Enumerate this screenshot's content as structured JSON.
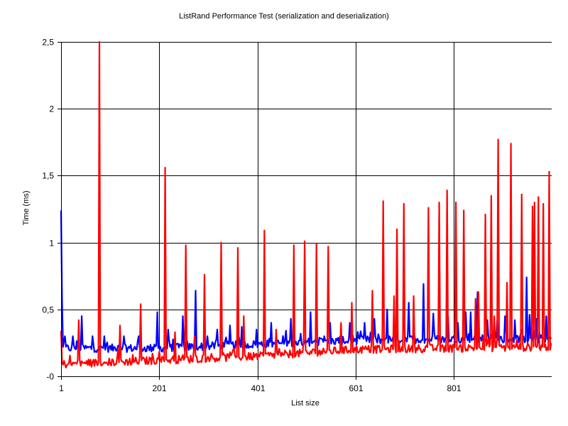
{
  "chart_data": {
    "type": "line",
    "title": "ListRand Performance Test (serialization and deserialization)",
    "xlabel": "List size",
    "ylabel": "Time (ms)",
    "xlim": [
      1,
      1000
    ],
    "ylim": [
      0,
      2.5
    ],
    "x_ticks": [
      {
        "value": 1,
        "label": "1"
      },
      {
        "value": 201,
        "label": "201"
      },
      {
        "value": 401,
        "label": "401"
      },
      {
        "value": 601,
        "label": "601"
      },
      {
        "value": 801,
        "label": "801"
      }
    ],
    "y_ticks": [
      {
        "value": 0,
        "label": "-0"
      },
      {
        "value": 0.5,
        "label": "0,5"
      },
      {
        "value": 1,
        "label": "1"
      },
      {
        "value": 1.5,
        "label": "1,5"
      },
      {
        "value": 2,
        "label": "2"
      },
      {
        "value": 2.5,
        "label": "2,5"
      }
    ],
    "grid": true,
    "legend": "none",
    "series": [
      {
        "color": "#0000ff",
        "base": [
          [
            1,
            0.21
          ],
          [
            200,
            0.21
          ],
          [
            400,
            0.24
          ],
          [
            600,
            0.27
          ],
          [
            800,
            0.28
          ],
          [
            1000,
            0.28
          ]
        ],
        "spikes": [
          [
            1,
            1.24
          ],
          [
            3,
            0.57
          ],
          [
            10,
            0.3
          ],
          [
            26,
            0.3
          ],
          [
            44,
            0.45
          ],
          [
            65,
            0.3
          ],
          [
            90,
            0.3
          ],
          [
            130,
            0.3
          ],
          [
            160,
            0.3
          ],
          [
            198,
            0.48
          ],
          [
            220,
            0.35
          ],
          [
            250,
            0.45
          ],
          [
            275,
            0.64
          ],
          [
            300,
            0.3
          ],
          [
            320,
            0.35
          ],
          [
            345,
            0.38
          ],
          [
            370,
            0.37
          ],
          [
            400,
            0.35
          ],
          [
            430,
            0.4
          ],
          [
            470,
            0.43
          ],
          [
            510,
            0.48
          ],
          [
            550,
            0.4
          ],
          [
            590,
            0.4
          ],
          [
            620,
            0.4
          ],
          [
            640,
            0.43
          ],
          [
            665,
            0.5
          ],
          [
            700,
            0.69
          ],
          [
            710,
            0.55
          ],
          [
            740,
            0.69
          ],
          [
            760,
            0.47
          ],
          [
            790,
            0.45
          ],
          [
            810,
            0.4
          ],
          [
            825,
            0.48
          ],
          [
            835,
            0.48
          ],
          [
            850,
            0.63
          ],
          [
            870,
            0.42
          ],
          [
            890,
            0.42
          ],
          [
            905,
            0.45
          ],
          [
            925,
            0.42
          ],
          [
            950,
            0.74
          ],
          [
            955,
            0.46
          ],
          [
            970,
            0.43
          ],
          [
            990,
            0.45
          ]
        ]
      },
      {
        "color": "#ff0000",
        "base": [
          [
            1,
            0.09
          ],
          [
            200,
            0.12
          ],
          [
            400,
            0.15
          ],
          [
            600,
            0.2
          ],
          [
            800,
            0.21
          ],
          [
            1000,
            0.22
          ]
        ],
        "spikes": [
          [
            2,
            0.34
          ],
          [
            38,
            0.42
          ],
          [
            80,
            2.5
          ],
          [
            122,
            0.38
          ],
          [
            163,
            0.54
          ],
          [
            213,
            1.56
          ],
          [
            233,
            0.33
          ],
          [
            255,
            0.98
          ],
          [
            273,
            0.3
          ],
          [
            294,
            0.76
          ],
          [
            327,
            1.0
          ],
          [
            362,
            0.96
          ],
          [
            373,
            0.45
          ],
          [
            416,
            1.09
          ],
          [
            440,
            0.35
          ],
          [
            475,
            0.98
          ],
          [
            498,
            1.01
          ],
          [
            522,
            0.99
          ],
          [
            545,
            0.97
          ],
          [
            571,
            0.4
          ],
          [
            593,
            0.55
          ],
          [
            636,
            0.64
          ],
          [
            658,
            1.31
          ],
          [
            680,
            0.6
          ],
          [
            685,
            1.1
          ],
          [
            700,
            1.29
          ],
          [
            720,
            0.6
          ],
          [
            750,
            1.26
          ],
          [
            772,
            1.3
          ],
          [
            788,
            1.39
          ],
          [
            805,
            1.3
          ],
          [
            822,
            1.24
          ],
          [
            845,
            0.58
          ],
          [
            852,
            0.63
          ],
          [
            865,
            1.21
          ],
          [
            877,
            1.35
          ],
          [
            883,
            0.45
          ],
          [
            892,
            1.77
          ],
          [
            910,
            0.7
          ],
          [
            918,
            1.74
          ],
          [
            940,
            1.36
          ],
          [
            962,
            1.27
          ],
          [
            966,
            1.3
          ],
          [
            974,
            1.34
          ],
          [
            984,
            1.29
          ],
          [
            996,
            1.53
          ]
        ]
      }
    ]
  }
}
